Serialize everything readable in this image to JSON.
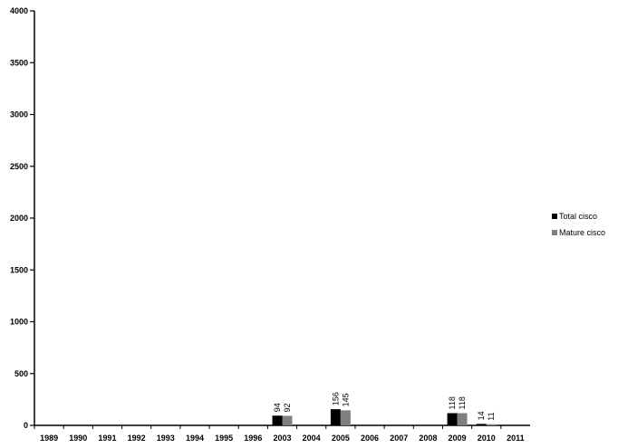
{
  "chart_data": {
    "type": "bar",
    "categories": [
      "1989",
      "1990",
      "1991",
      "1992",
      "1993",
      "1994",
      "1995",
      "1996",
      "2003",
      "2004",
      "2005",
      "2006",
      "2007",
      "2008",
      "2009",
      "2010",
      "2011"
    ],
    "series": [
      {
        "name": "Total cisco",
        "color": "#000000",
        "values": [
          0,
          0,
          0,
          0,
          0,
          0,
          0,
          0,
          94,
          0,
          156,
          0,
          0,
          0,
          118,
          14,
          0
        ],
        "labels": [
          "",
          "",
          "",
          "",
          "",
          "",
          "",
          "",
          "94",
          "",
          "156",
          "",
          "",
          "",
          "118",
          "14",
          ""
        ]
      },
      {
        "name": "Mature cisco",
        "color": "#808080",
        "values": [
          0,
          0,
          0,
          0,
          0,
          0,
          0,
          0,
          92,
          0,
          145,
          0,
          0,
          0,
          118,
          11,
          0
        ],
        "labels": [
          "",
          "",
          "",
          "",
          "",
          "",
          "",
          "",
          "92",
          "",
          "145",
          "",
          "",
          "",
          "118",
          "11",
          ""
        ]
      }
    ],
    "ylim": [
      0,
      4000
    ],
    "yticks": [
      "0",
      "500",
      "1000",
      "1500",
      "2000",
      "2500",
      "3000",
      "3500",
      "4000"
    ],
    "grid": false,
    "legend_position": "right"
  }
}
